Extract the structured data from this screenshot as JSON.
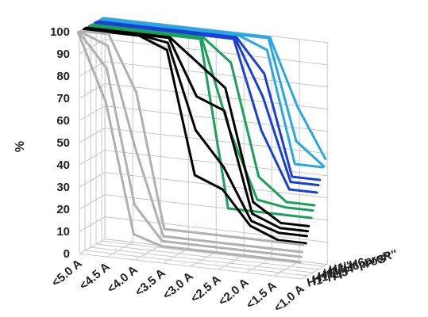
{
  "chart_data": {
    "type": "line",
    "title": "",
    "ylabel": "%",
    "ylim": [
      0,
      100
    ],
    "y_ticks": [
      "0",
      "10",
      "20",
      "30",
      "40",
      "50",
      "60",
      "70",
      "80",
      "90",
      "100"
    ],
    "categories": [
      "<5.0 A",
      "<4.5 A",
      "<4.0 A",
      "<3.5 A",
      "<3.0 A",
      "<2.5 A",
      "<2.0 A",
      "<1.5 A",
      "<1.0 A"
    ],
    "depth_labels": [
      "H1''H4''",
      "H1''H5''",
      "H1''H4",
      "H1''H6proS''",
      "H1''H6proR''"
    ],
    "grid": true,
    "series": [
      {
        "depth": 0,
        "color": "#b0b0b0",
        "values": [
          100,
          70,
          12,
          8,
          8,
          8,
          8,
          8,
          8
        ]
      },
      {
        "depth": 0,
        "color": "#b0b0b0",
        "values": [
          100,
          85,
          25,
          10,
          10,
          10,
          10,
          10,
          10
        ]
      },
      {
        "depth": 0,
        "color": "#b0b0b0",
        "values": [
          100,
          95,
          50,
          12,
          12,
          12,
          12,
          12,
          12
        ]
      },
      {
        "depth": 0,
        "color": "#b0b0b0",
        "values": [
          100,
          100,
          75,
          15,
          15,
          15,
          15,
          15,
          15
        ]
      },
      {
        "depth": 1,
        "color": "#000000",
        "values": [
          100,
          100,
          100,
          95,
          40,
          35,
          20,
          15,
          15
        ]
      },
      {
        "depth": 1,
        "color": "#000000",
        "values": [
          100,
          100,
          100,
          98,
          60,
          45,
          22,
          18,
          18
        ]
      },
      {
        "depth": 1,
        "color": "#000000",
        "values": [
          100,
          100,
          100,
          100,
          75,
          70,
          25,
          20,
          20
        ]
      },
      {
        "depth": 1,
        "color": "#000000",
        "values": [
          100,
          100,
          100,
          100,
          90,
          80,
          30,
          22,
          22
        ]
      },
      {
        "depth": 2,
        "color": "#1aa05a",
        "values": [
          100,
          100,
          100,
          100,
          100,
          25,
          25,
          25,
          25
        ]
      },
      {
        "depth": 2,
        "color": "#1aa05a",
        "values": [
          100,
          100,
          100,
          100,
          100,
          60,
          30,
          28,
          28
        ]
      },
      {
        "depth": 2,
        "color": "#1aa05a",
        "values": [
          100,
          100,
          100,
          100,
          100,
          90,
          40,
          30,
          30
        ]
      },
      {
        "depth": 3,
        "color": "#1a3fd6",
        "values": [
          100,
          100,
          100,
          100,
          100,
          100,
          60,
          35,
          35
        ]
      },
      {
        "depth": 3,
        "color": "#1a3fd6",
        "values": [
          100,
          100,
          100,
          100,
          100,
          100,
          75,
          38,
          38
        ]
      },
      {
        "depth": 3,
        "color": "#1a3fd6",
        "values": [
          100,
          100,
          100,
          100,
          100,
          100,
          85,
          40,
          40
        ]
      },
      {
        "depth": 4,
        "color": "#29a8e0",
        "values": [
          100,
          100,
          100,
          100,
          100,
          100,
          95,
          45,
          45
        ]
      },
      {
        "depth": 4,
        "color": "#29a8e0",
        "values": [
          100,
          100,
          100,
          100,
          100,
          100,
          100,
          55,
          45
        ]
      },
      {
        "depth": 4,
        "color": "#29a8e0",
        "values": [
          100,
          100,
          100,
          100,
          100,
          100,
          100,
          70,
          48
        ]
      }
    ]
  }
}
